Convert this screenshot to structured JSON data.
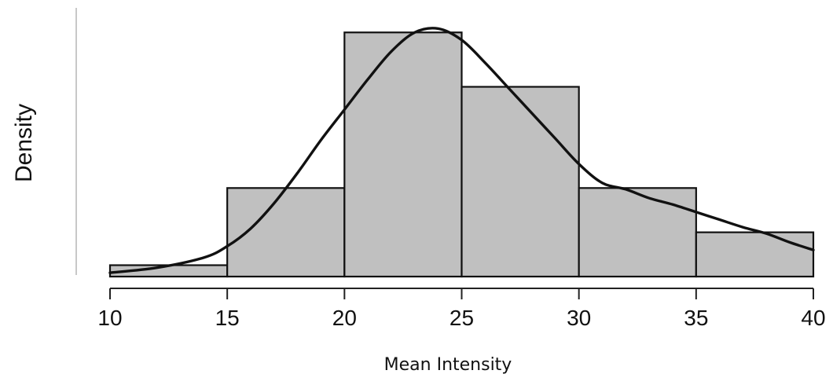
{
  "chart_data": {
    "type": "bar",
    "subtype": "histogram-with-density",
    "xlabel": "Mean Intensity",
    "ylabel": "Density",
    "xlim": [
      10,
      40
    ],
    "ylim": [
      0,
      0.1
    ],
    "x_ticks": [
      10,
      15,
      20,
      25,
      30,
      35,
      40
    ],
    "bins": [
      {
        "start": 10,
        "end": 15,
        "density": 0.0045
      },
      {
        "start": 15,
        "end": 20,
        "density": 0.035
      },
      {
        "start": 20,
        "end": 25,
        "density": 0.0965
      },
      {
        "start": 25,
        "end": 30,
        "density": 0.075
      },
      {
        "start": 30,
        "end": 35,
        "density": 0.035
      },
      {
        "start": 35,
        "end": 40,
        "density": 0.0175
      }
    ],
    "density_curve": {
      "x": [
        10,
        12,
        14,
        15,
        16,
        17,
        18,
        19,
        20,
        21,
        22,
        23,
        24,
        25,
        26,
        27,
        28,
        29,
        30,
        31,
        32,
        33,
        34,
        35,
        36,
        37,
        38,
        39,
        40
      ],
      "y": [
        0.0015,
        0.0035,
        0.0075,
        0.012,
        0.019,
        0.029,
        0.041,
        0.054,
        0.066,
        0.078,
        0.089,
        0.0965,
        0.098,
        0.0935,
        0.0845,
        0.0745,
        0.0645,
        0.0545,
        0.0445,
        0.037,
        0.0345,
        0.031,
        0.0285,
        0.0255,
        0.0225,
        0.0195,
        0.017,
        0.0135,
        0.0105
      ]
    },
    "bar_fill_color": "#c0c0c0",
    "line_color": "#111111",
    "grid": false,
    "legend": "none"
  }
}
